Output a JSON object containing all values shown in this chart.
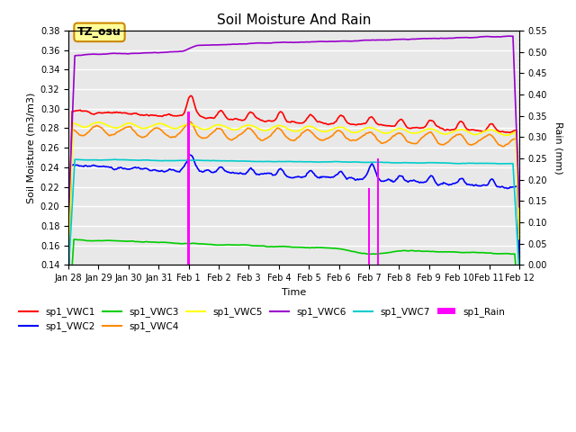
{
  "title": "Soil Moisture And Rain",
  "ylabel_left": "Soil Moisture (m3/m3)",
  "ylabel_right": "Rain (mm)",
  "xlabel": "Time",
  "ylim_left": [
    0.14,
    0.38
  ],
  "ylim_right": [
    0.0,
    0.55
  ],
  "yticks_left": [
    0.14,
    0.16,
    0.18,
    0.2,
    0.22,
    0.24,
    0.26,
    0.28,
    0.3,
    0.32,
    0.34,
    0.36,
    0.38
  ],
  "yticks_right": [
    0.0,
    0.05,
    0.1,
    0.15,
    0.2,
    0.25,
    0.3,
    0.35,
    0.4,
    0.45,
    0.5,
    0.55
  ],
  "bg_color": "#e8e8e8",
  "grid_color": "#ffffff",
  "annotation_box": {
    "text": "TZ_osu",
    "facecolor": "#ffff99",
    "edgecolor": "#cc8800"
  },
  "series_colors": {
    "VWC1": "#ff0000",
    "VWC2": "#0000ff",
    "VWC3": "#00cc00",
    "VWC4": "#ff8800",
    "VWC5": "#ffff00",
    "VWC6": "#9900cc",
    "VWC7": "#00cccc",
    "Rain": "#ff00ff"
  },
  "rain_bars": [
    {
      "x": 4.0,
      "rain_mm": 0.36
    },
    {
      "x": 10.0,
      "rain_mm": 0.18
    },
    {
      "x": 10.3,
      "rain_mm": 0.25
    }
  ],
  "n_points": 500,
  "x_tick_positions": [
    0,
    1,
    2,
    3,
    4,
    5,
    6,
    7,
    8,
    9,
    10,
    11,
    12,
    13,
    14,
    15
  ],
  "x_tick_labels": [
    "Jan 28",
    "Jan 29",
    "Jan 30",
    "Jan 31",
    "Feb 1",
    "Feb 2",
    "Feb 3",
    "Feb 4",
    "Feb 5",
    "Feb 6",
    "Feb 7",
    "Feb 8",
    "Feb 9",
    "Feb 10",
    "Feb 11",
    "Feb 12"
  ]
}
